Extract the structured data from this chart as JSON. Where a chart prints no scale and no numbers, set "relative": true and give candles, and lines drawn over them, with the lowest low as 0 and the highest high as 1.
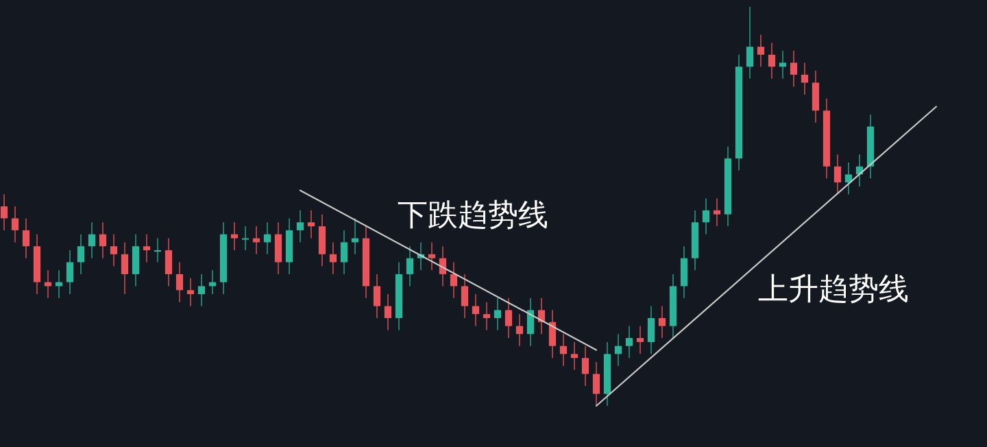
{
  "chart_data": {
    "type": "candlestick",
    "relative": true,
    "categories": [
      null,
      null,
      null,
      null,
      null,
      null,
      null,
      null,
      null,
      null,
      null,
      null,
      null,
      null,
      null,
      null,
      null,
      null,
      null,
      null,
      null,
      null,
      null,
      null,
      null,
      null,
      null,
      null,
      null,
      null,
      null,
      null,
      null,
      null,
      null,
      null,
      null,
      null,
      null,
      null,
      null,
      null,
      null,
      null,
      null,
      null,
      null,
      null,
      null,
      null,
      null,
      null,
      null,
      null,
      null,
      null,
      null,
      null,
      null,
      null,
      null,
      null,
      null,
      null,
      null,
      null,
      null,
      null,
      null,
      null,
      null,
      null,
      null,
      null,
      null,
      null,
      null,
      null,
      null,
      null,
      null,
      null,
      null,
      null,
      null,
      null
    ],
    "ohlc": [
      [
        0.5,
        0.53,
        0.44,
        0.47
      ],
      [
        0.47,
        0.5,
        0.41,
        0.44
      ],
      [
        0.44,
        0.47,
        0.37,
        0.4
      ],
      [
        0.4,
        0.43,
        0.28,
        0.31
      ],
      [
        0.31,
        0.34,
        0.27,
        0.3
      ],
      [
        0.3,
        0.34,
        0.27,
        0.31
      ],
      [
        0.31,
        0.39,
        0.28,
        0.36
      ],
      [
        0.36,
        0.43,
        0.33,
        0.4
      ],
      [
        0.4,
        0.46,
        0.37,
        0.43
      ],
      [
        0.43,
        0.46,
        0.37,
        0.4
      ],
      [
        0.4,
        0.43,
        0.35,
        0.38
      ],
      [
        0.38,
        0.41,
        0.28,
        0.33
      ],
      [
        0.33,
        0.43,
        0.3,
        0.4
      ],
      [
        0.4,
        0.43,
        0.36,
        0.39
      ],
      [
        0.39,
        0.42,
        0.36,
        0.39
      ],
      [
        0.39,
        0.42,
        0.3,
        0.33
      ],
      [
        0.33,
        0.36,
        0.26,
        0.29
      ],
      [
        0.29,
        0.32,
        0.25,
        0.28
      ],
      [
        0.28,
        0.33,
        0.25,
        0.3
      ],
      [
        0.3,
        0.34,
        0.28,
        0.31
      ],
      [
        0.31,
        0.46,
        0.28,
        0.43
      ],
      [
        0.43,
        0.46,
        0.39,
        0.42
      ],
      [
        0.42,
        0.45,
        0.39,
        0.42
      ],
      [
        0.42,
        0.45,
        0.38,
        0.41
      ],
      [
        0.41,
        0.46,
        0.38,
        0.43
      ],
      [
        0.43,
        0.46,
        0.33,
        0.36
      ],
      [
        0.36,
        0.47,
        0.33,
        0.44
      ],
      [
        0.44,
        0.49,
        0.41,
        0.46
      ],
      [
        0.46,
        0.49,
        0.42,
        0.45
      ],
      [
        0.45,
        0.48,
        0.35,
        0.38
      ],
      [
        0.38,
        0.41,
        0.33,
        0.36
      ],
      [
        0.36,
        0.44,
        0.33,
        0.41
      ],
      [
        0.41,
        0.47,
        0.38,
        0.42
      ],
      [
        0.42,
        0.45,
        0.27,
        0.3
      ],
      [
        0.3,
        0.33,
        0.22,
        0.25
      ],
      [
        0.25,
        0.28,
        0.19,
        0.22
      ],
      [
        0.22,
        0.36,
        0.19,
        0.33
      ],
      [
        0.33,
        0.4,
        0.3,
        0.37
      ],
      [
        0.37,
        0.41,
        0.34,
        0.38
      ],
      [
        0.38,
        0.41,
        0.34,
        0.37
      ],
      [
        0.37,
        0.4,
        0.3,
        0.33
      ],
      [
        0.33,
        0.36,
        0.27,
        0.3
      ],
      [
        0.3,
        0.33,
        0.22,
        0.25
      ],
      [
        0.25,
        0.28,
        0.2,
        0.23
      ],
      [
        0.23,
        0.26,
        0.19,
        0.22
      ],
      [
        0.22,
        0.27,
        0.19,
        0.24
      ],
      [
        0.24,
        0.27,
        0.17,
        0.2
      ],
      [
        0.2,
        0.23,
        0.15,
        0.18
      ],
      [
        0.18,
        0.27,
        0.15,
        0.24
      ],
      [
        0.24,
        0.27,
        0.18,
        0.21
      ],
      [
        0.21,
        0.24,
        0.12,
        0.15
      ],
      [
        0.15,
        0.18,
        0.1,
        0.13
      ],
      [
        0.13,
        0.16,
        0.09,
        0.12
      ],
      [
        0.12,
        0.15,
        0.05,
        0.08
      ],
      [
        0.08,
        0.11,
        0.0,
        0.03
      ],
      [
        0.03,
        0.16,
        0.0,
        0.13
      ],
      [
        0.13,
        0.18,
        0.1,
        0.15
      ],
      [
        0.15,
        0.2,
        0.12,
        0.17
      ],
      [
        0.17,
        0.2,
        0.13,
        0.16
      ],
      [
        0.16,
        0.25,
        0.13,
        0.22
      ],
      [
        0.22,
        0.25,
        0.17,
        0.2
      ],
      [
        0.2,
        0.33,
        0.17,
        0.3
      ],
      [
        0.3,
        0.4,
        0.27,
        0.37
      ],
      [
        0.37,
        0.49,
        0.34,
        0.46
      ],
      [
        0.46,
        0.52,
        0.43,
        0.49
      ],
      [
        0.49,
        0.52,
        0.45,
        0.48
      ],
      [
        0.48,
        0.65,
        0.45,
        0.62
      ],
      [
        0.62,
        0.88,
        0.59,
        0.85
      ],
      [
        0.85,
        1.0,
        0.82,
        0.9
      ],
      [
        0.9,
        0.93,
        0.85,
        0.88
      ],
      [
        0.88,
        0.91,
        0.82,
        0.85
      ],
      [
        0.85,
        0.89,
        0.82,
        0.86
      ],
      [
        0.86,
        0.89,
        0.8,
        0.83
      ],
      [
        0.83,
        0.86,
        0.78,
        0.81
      ],
      [
        0.81,
        0.84,
        0.71,
        0.74
      ],
      [
        0.74,
        0.77,
        0.57,
        0.6
      ],
      [
        0.6,
        0.63,
        0.53,
        0.56
      ],
      [
        0.56,
        0.61,
        0.53,
        0.58
      ],
      [
        0.58,
        0.63,
        0.55,
        0.6
      ],
      [
        0.6,
        0.73,
        0.57,
        0.7
      ],
      null,
      null,
      null,
      null,
      null,
      null
    ],
    "series": [
      {
        "type": "line",
        "color": "#c8c8c8",
        "values": [
          null,
          null,
          null,
          null,
          null,
          null,
          null,
          null,
          null,
          null,
          null,
          null,
          null,
          null,
          null,
          null,
          null,
          null,
          null,
          null,
          null,
          null,
          null,
          null,
          null,
          null,
          null,
          0.54,
          null,
          null,
          null,
          null,
          null,
          null,
          null,
          null,
          null,
          null,
          null,
          null,
          null,
          null,
          null,
          null,
          null,
          null,
          null,
          null,
          null,
          null,
          null,
          null,
          null,
          null,
          0.14,
          null,
          null,
          null,
          null,
          null,
          null,
          null,
          null,
          null,
          null,
          null,
          null,
          null,
          null,
          null,
          null,
          null,
          null,
          null,
          null,
          null,
          null,
          null,
          null,
          null,
          null,
          null,
          null,
          null,
          null,
          null
        ]
      },
      {
        "type": "line",
        "color": "#c8c8c8",
        "values": [
          null,
          null,
          null,
          null,
          null,
          null,
          null,
          null,
          null,
          null,
          null,
          null,
          null,
          null,
          null,
          null,
          null,
          null,
          null,
          null,
          null,
          null,
          null,
          null,
          null,
          null,
          null,
          null,
          null,
          null,
          null,
          null,
          null,
          null,
          null,
          null,
          null,
          null,
          null,
          null,
          null,
          null,
          null,
          null,
          null,
          null,
          null,
          null,
          null,
          null,
          null,
          null,
          null,
          null,
          0.0,
          null,
          null,
          null,
          null,
          null,
          null,
          null,
          null,
          null,
          null,
          null,
          null,
          null,
          null,
          null,
          null,
          null,
          null,
          null,
          null,
          null,
          null,
          null,
          null,
          null,
          null,
          null,
          null,
          null,
          null,
          0.75
        ]
      }
    ],
    "annotations": [
      "下跌趋势线",
      "上升趋势线"
    ]
  }
}
